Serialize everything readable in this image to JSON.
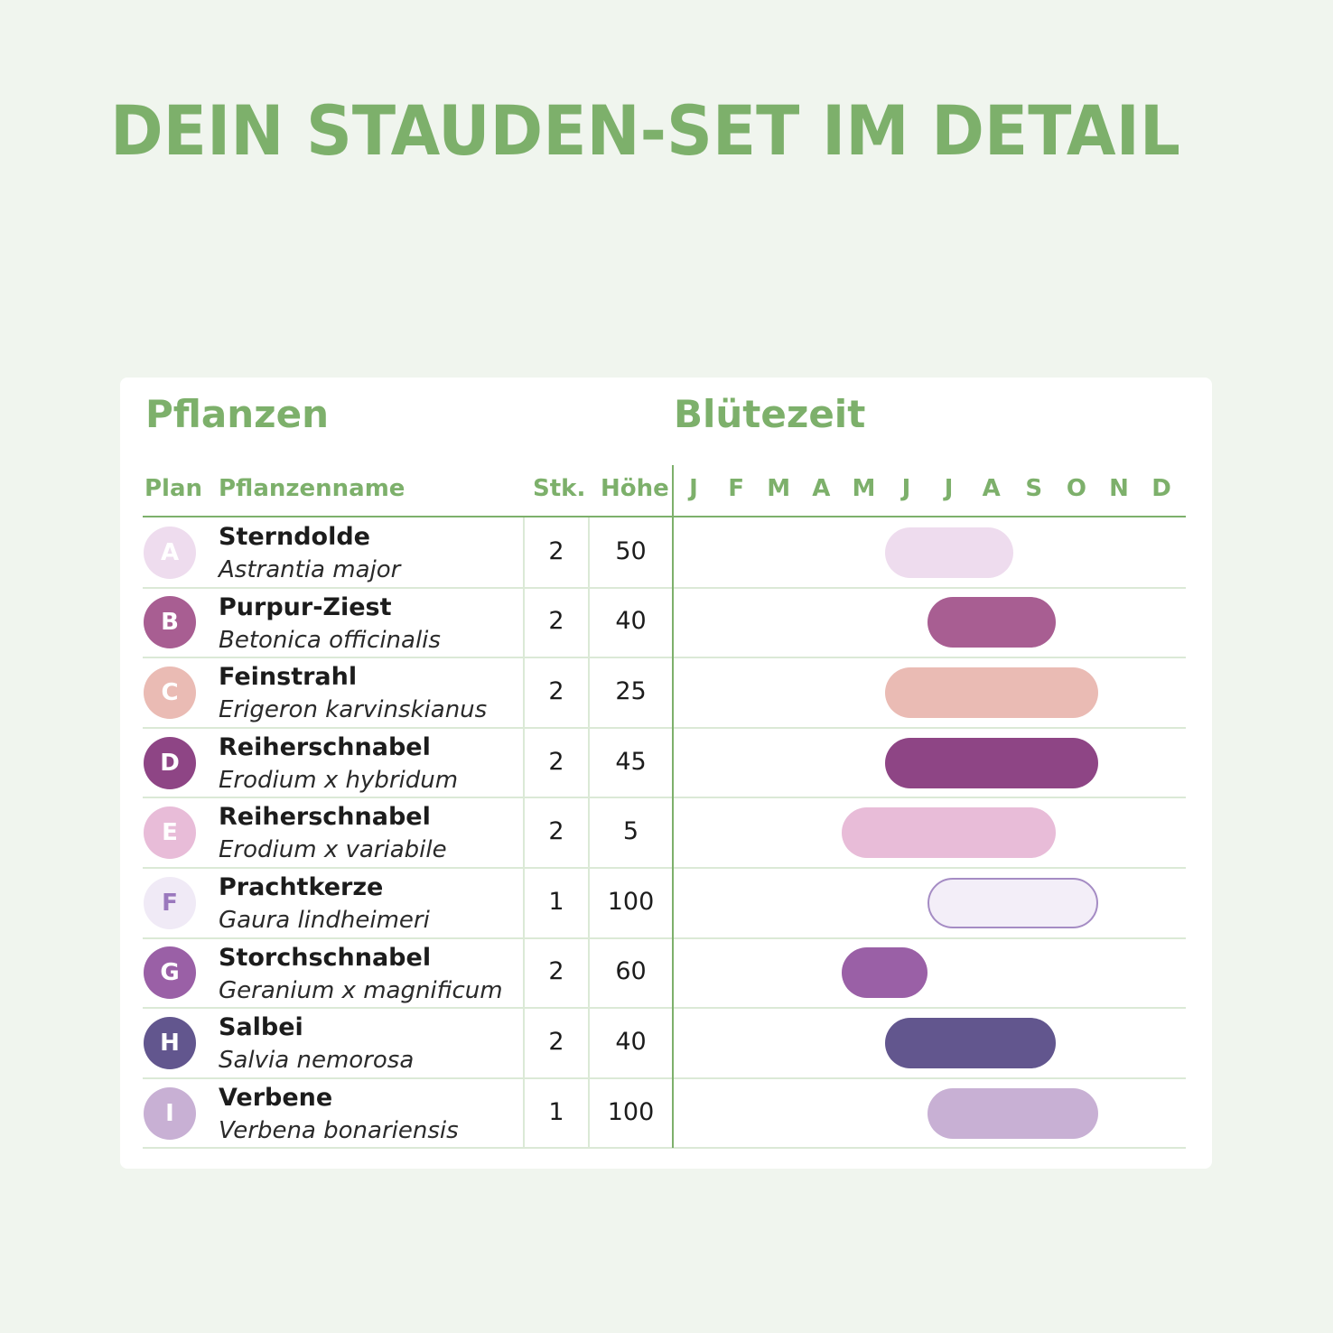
{
  "page_title": "DEIN STAUDEN-SET IM DETAIL",
  "table": {
    "section_plants": "Pflanzen",
    "section_bloom": "Blütezeit",
    "col_plan": "Plan",
    "col_name": "Pflanzenname",
    "col_qty": "Stk.",
    "col_height": "Höhe",
    "months": [
      "J",
      "F",
      "M",
      "A",
      "M",
      "J",
      "J",
      "A",
      "S",
      "O",
      "N",
      "D"
    ]
  },
  "chart_data": {
    "type": "gantt",
    "x_categories": [
      "J",
      "F",
      "M",
      "A",
      "M",
      "J",
      "J",
      "A",
      "S",
      "O",
      "N",
      "D"
    ],
    "rows": [
      {
        "plan": "A",
        "name": "Sterndolde",
        "latin": "Astrantia major",
        "qty": "2",
        "height": "50",
        "bloom_start": "J",
        "bloom_end": "A",
        "start_month": 6,
        "end_month": 8,
        "color": "#eedcee",
        "text_color": "#ffffff",
        "circle_color": "#eedcee"
      },
      {
        "plan": "B",
        "name": "Purpur-Ziest",
        "latin": "Betonica officinalis",
        "qty": "2",
        "height": "40",
        "bloom_start": "J",
        "bloom_end": "S",
        "start_month": 7,
        "end_month": 9,
        "color": "#a85e92",
        "text_color": "#ffffff",
        "circle_color": "#a85e92"
      },
      {
        "plan": "C",
        "name": "Feinstrahl",
        "latin": "Erigeron karvinskianus",
        "qty": "2",
        "height": "25",
        "bloom_start": "J",
        "bloom_end": "O",
        "start_month": 6,
        "end_month": 10,
        "color": "#eabbb4",
        "text_color": "#ffffff",
        "circle_color": "#eabbb4"
      },
      {
        "plan": "D",
        "name": "Reiherschnabel",
        "latin": "Erodium x hybridum",
        "qty": "2",
        "height": "45",
        "bloom_start": "J",
        "bloom_end": "O",
        "start_month": 6,
        "end_month": 10,
        "color": "#8e4585",
        "text_color": "#ffffff",
        "circle_color": "#8e4585"
      },
      {
        "plan": "E",
        "name": "Reiherschnabel",
        "latin": "Erodium x variabile",
        "qty": "2",
        "height": "5",
        "bloom_start": "M",
        "bloom_end": "S",
        "start_month": 5,
        "end_month": 9,
        "color": "#e8bcd8",
        "text_color": "#ffffff",
        "circle_color": "#e8bcd8"
      },
      {
        "plan": "F",
        "name": "Prachtkerze",
        "latin": "Gaura lindheimeri",
        "qty": "1",
        "height": "100",
        "bloom_start": "J",
        "bloom_end": "O",
        "start_month": 7,
        "end_month": 10,
        "color": "#f3eef8",
        "border": "#a58cc4",
        "text_color": "#9a78bd",
        "circle_color": "#f0eaf6"
      },
      {
        "plan": "G",
        "name": "Storchschnabel",
        "latin": "Geranium x magnificum",
        "qty": "2",
        "height": "60",
        "bloom_start": "M",
        "bloom_end": "J",
        "start_month": 5,
        "end_month": 6,
        "color": "#9a60a6",
        "text_color": "#ffffff",
        "circle_color": "#9a60a6"
      },
      {
        "plan": "H",
        "name": "Salbei",
        "latin": "Salvia nemorosa",
        "qty": "2",
        "height": "40",
        "bloom_start": "J",
        "bloom_end": "S",
        "start_month": 6,
        "end_month": 9,
        "color": "#62568e",
        "text_color": "#ffffff",
        "circle_color": "#62568e"
      },
      {
        "plan": "I",
        "name": "Verbene",
        "latin": "Verbena bonariensis",
        "qty": "1",
        "height": "100",
        "bloom_start": "J",
        "bloom_end": "O",
        "start_month": 7,
        "end_month": 10,
        "color": "#c8b0d4",
        "text_color": "#ffffff",
        "circle_color": "#c8b0d4"
      }
    ]
  }
}
